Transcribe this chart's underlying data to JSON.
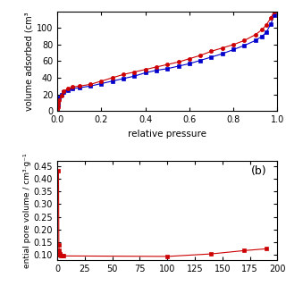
{
  "top_plot": {
    "xlabel": "relative pressure",
    "ylabel": "volume adsorbed (cm³",
    "xlim": [
      0.0,
      1.0
    ],
    "ylim": [
      0,
      120
    ],
    "yticks": [
      0,
      20,
      40,
      60,
      80,
      100
    ],
    "xticks": [
      0.0,
      0.2,
      0.4,
      0.6,
      0.8,
      1.0
    ],
    "blue_x": [
      0.001,
      0.003,
      0.006,
      0.01,
      0.02,
      0.03,
      0.05,
      0.07,
      0.1,
      0.15,
      0.2,
      0.25,
      0.3,
      0.35,
      0.4,
      0.45,
      0.5,
      0.55,
      0.6,
      0.65,
      0.7,
      0.75,
      0.8,
      0.85,
      0.9,
      0.93,
      0.95,
      0.97,
      0.985
    ],
    "blue_y": [
      3,
      8,
      13,
      16,
      20,
      23,
      25,
      27,
      28,
      30,
      33,
      36,
      39,
      42,
      46,
      49,
      51,
      54,
      57,
      61,
      65,
      69,
      74,
      79,
      85,
      90,
      95,
      105,
      115
    ],
    "red_x": [
      0.001,
      0.003,
      0.006,
      0.01,
      0.02,
      0.03,
      0.05,
      0.07,
      0.1,
      0.15,
      0.2,
      0.25,
      0.3,
      0.35,
      0.4,
      0.45,
      0.5,
      0.55,
      0.6,
      0.65,
      0.7,
      0.75,
      0.8,
      0.85,
      0.9,
      0.93,
      0.95,
      0.97,
      0.985
    ],
    "red_y": [
      2,
      5,
      9,
      13,
      19,
      24,
      27,
      29,
      30,
      32,
      36,
      40,
      44,
      47,
      50,
      53,
      56,
      59,
      63,
      67,
      72,
      76,
      80,
      85,
      92,
      98,
      104,
      112,
      120
    ],
    "blue_color": "#0000cc",
    "red_color": "#cc0000"
  },
  "bottom_plot": {
    "label": "(b)",
    "ylabel": "ential pore volume / cm³·g⁻¹",
    "xlim": [
      0.0,
      200.0
    ],
    "ylim": [
      0.08,
      0.47
    ],
    "yticks": [
      0.1,
      0.15,
      0.2,
      0.25,
      0.3,
      0.35,
      0.4,
      0.45
    ],
    "red_x": [
      1.2,
      1.5,
      1.7,
      1.9,
      2.1,
      2.4,
      2.8,
      3.5,
      4.5,
      6.0,
      100.0,
      140.0,
      170.0,
      190.0
    ],
    "red_y": [
      0.43,
      0.14,
      0.12,
      0.11,
      0.105,
      0.103,
      0.1,
      0.099,
      0.098,
      0.097,
      0.095,
      0.105,
      0.118,
      0.125
    ],
    "red_color": "#cc0000"
  }
}
